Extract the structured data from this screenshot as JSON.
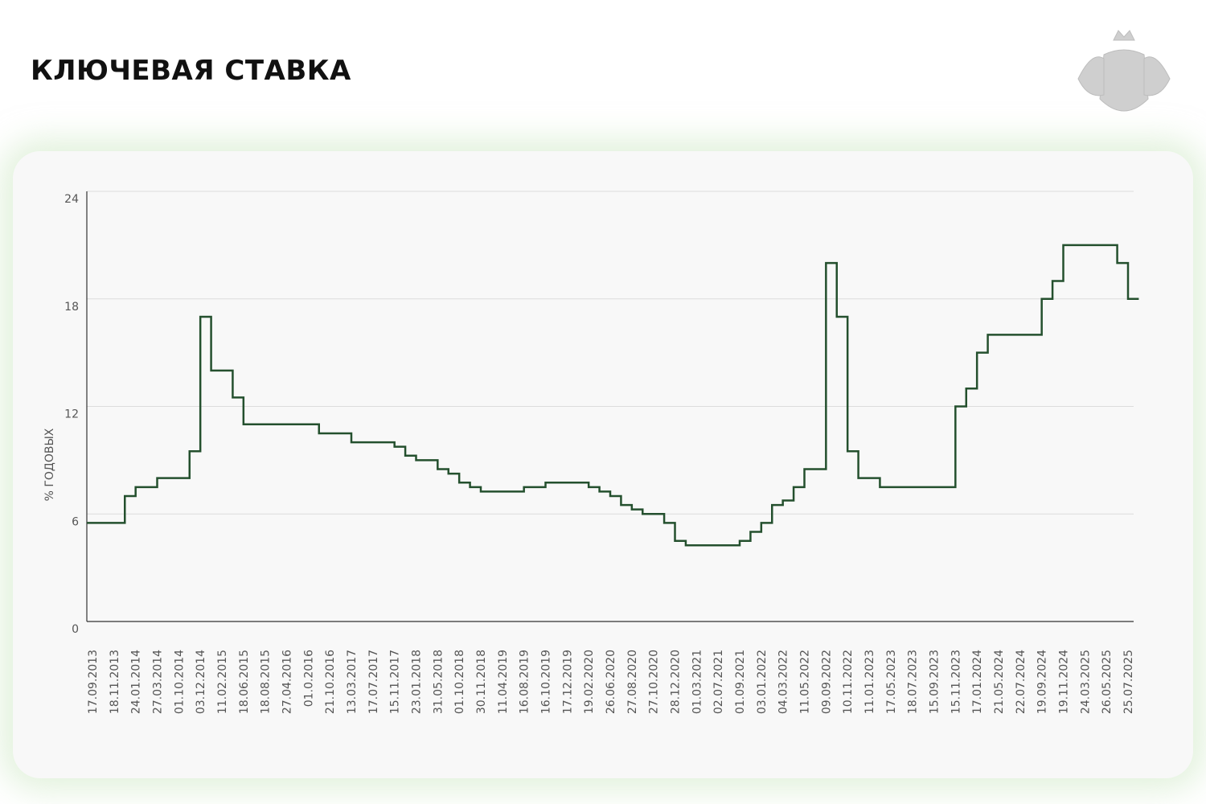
{
  "chart_data": {
    "type": "step",
    "title": "КЛЮЧЕВАЯ СТАВКА",
    "y_label": "% ГОДОВЫХ",
    "categories": [
      "17.09.2013",
      null,
      "18.11.2013",
      null,
      "24.01.2014",
      null,
      "27.03.2014",
      null,
      "01.10.2014",
      null,
      "03.12.2014",
      null,
      "11.02.2015",
      null,
      "18.06.2015",
      null,
      "18.08.2015",
      null,
      "27.04.2016",
      null,
      "01.0.2016",
      null,
      "21.10.2016",
      null,
      "13.03.2017",
      null,
      "17.07.2017",
      null,
      "15.11.2017",
      null,
      "23.01.2018",
      null,
      "31.05.2018",
      null,
      "01.10.2018",
      null,
      "30.11.2018",
      null,
      "11.04.2019",
      null,
      "16.08.2019",
      null,
      "16.10.2019",
      null,
      "17.12.2019",
      null,
      "19.02.2020",
      null,
      "26.06.2020",
      null,
      "27.08.2020",
      null,
      "27.10.2020",
      null,
      "28.12.2020",
      null,
      "01.03.2021",
      null,
      "02.07.2021",
      null,
      "01.09.2021",
      null,
      "03.01.2022",
      null,
      "04.03.2022",
      null,
      "11.05.2022",
      null,
      "09.09.2022",
      null,
      "10.11.2022",
      null,
      "11.01.2023",
      null,
      "17.05.2023",
      null,
      "18.07.2023",
      null,
      "15.09.2023",
      null,
      "15.11.2023",
      null,
      "17.01.2024",
      null,
      "21.05.2024",
      null,
      "22.07.2024",
      null,
      "19.09.2024",
      null,
      "19.11.2024",
      null,
      "24.03.2025",
      null,
      "26.05.2025",
      null,
      "25.07.2025"
    ],
    "values": [
      5.5,
      5.5,
      5.5,
      7,
      7.5,
      7.5,
      8,
      8,
      8,
      9.5,
      17,
      14,
      14,
      12.5,
      11,
      11,
      11,
      11,
      11,
      11,
      11,
      10.5,
      10.5,
      10.5,
      10,
      10,
      10,
      10,
      9.75,
      9.25,
      9,
      9,
      8.5,
      8.25,
      7.75,
      7.5,
      7.25,
      7.25,
      7.25,
      7.25,
      7.5,
      7.5,
      7.75,
      7.75,
      7.75,
      7.75,
      7.5,
      7.25,
      7,
      6.5,
      6.25,
      6,
      6,
      5.5,
      4.5,
      4.25,
      4.25,
      4.25,
      4.25,
      4.25,
      4.5,
      5,
      5.5,
      6.5,
      6.75,
      7.5,
      8.5,
      8.5,
      20,
      17,
      9.5,
      8,
      8,
      7.5,
      7.5,
      7.5,
      7.5,
      7.5,
      7.5,
      7.5,
      12,
      13,
      15,
      16,
      16,
      16,
      16,
      16,
      18,
      19,
      21,
      21,
      21,
      21,
      21,
      20,
      18
    ],
    "color": "#24502e",
    "ylim": [
      0,
      24
    ],
    "yticks": [
      0,
      6,
      12,
      18,
      24
    ],
    "grid": true
  }
}
